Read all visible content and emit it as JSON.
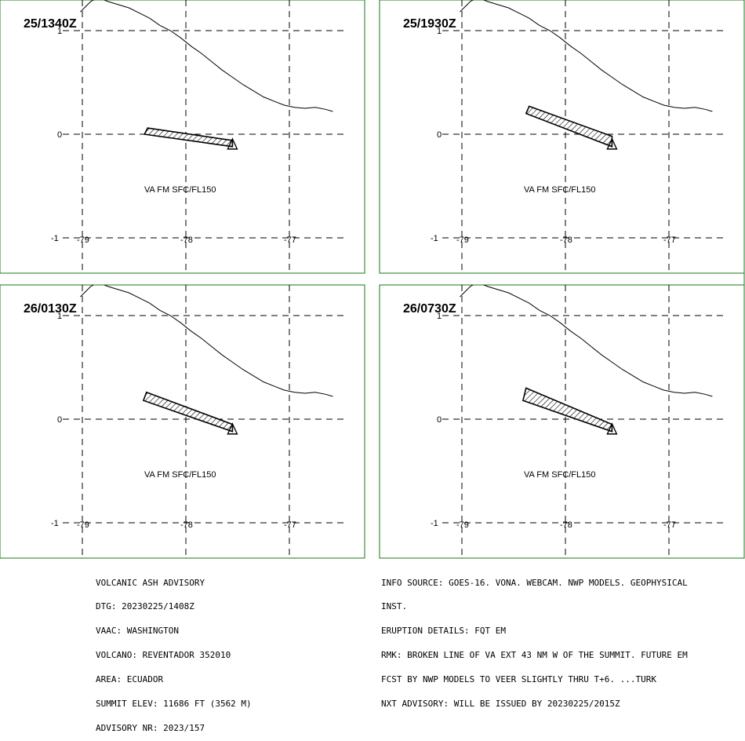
{
  "panels": [
    {
      "time_label": "25/1340Z",
      "level_label": "VA FM SFC/FL150",
      "plume_lonlat": [
        [
          -78.37,
          0.06
        ],
        [
          -77.55,
          -0.06
        ],
        [
          -77.55,
          -0.12
        ],
        [
          -78.4,
          0.0
        ]
      ],
      "vent_lonlat": [
        -77.55,
        -0.09
      ]
    },
    {
      "time_label": "25/1930Z",
      "level_label": "VA FM SFC/FL150",
      "plume_lonlat": [
        [
          -78.35,
          0.27
        ],
        [
          -77.55,
          -0.02
        ],
        [
          -77.55,
          -0.12
        ],
        [
          -78.38,
          0.2
        ]
      ],
      "vent_lonlat": [
        -77.55,
        -0.09
      ]
    },
    {
      "time_label": "26/0130Z",
      "level_label": "VA FM SFC/FL150",
      "plume_lonlat": [
        [
          -78.38,
          0.26
        ],
        [
          -77.55,
          -0.05
        ],
        [
          -77.55,
          -0.12
        ],
        [
          -78.41,
          0.18
        ]
      ],
      "vent_lonlat": [
        -77.55,
        -0.09
      ]
    },
    {
      "time_label": "26/0730Z",
      "level_label": "VA FM SFC/FL150",
      "plume_lonlat": [
        [
          -78.38,
          0.3
        ],
        [
          -77.55,
          -0.05
        ],
        [
          -77.55,
          -0.12
        ],
        [
          -78.41,
          0.18
        ]
      ],
      "vent_lonlat": [
        -77.55,
        -0.09
      ]
    }
  ],
  "axes": {
    "lon_ticks": [
      -79,
      -78,
      -77
    ],
    "lon_tick_labels": [
      "-79",
      "-78",
      "-77"
    ],
    "lat_ticks": [
      1,
      0,
      -1
    ],
    "lat_tick_labels": [
      "1",
      "0",
      "-1"
    ]
  },
  "coastline_lonlat": [
    [
      -79.02,
      1.18
    ],
    [
      -78.98,
      1.22
    ],
    [
      -78.92,
      1.28
    ],
    [
      -78.85,
      1.32
    ],
    [
      -78.75,
      1.28
    ],
    [
      -78.65,
      1.25
    ],
    [
      -78.55,
      1.22
    ],
    [
      -78.45,
      1.17
    ],
    [
      -78.35,
      1.12
    ],
    [
      -78.25,
      1.05
    ],
    [
      -78.15,
      1.0
    ],
    [
      -78.05,
      0.93
    ],
    [
      -77.95,
      0.85
    ],
    [
      -77.85,
      0.78
    ],
    [
      -77.75,
      0.7
    ],
    [
      -77.65,
      0.62
    ],
    [
      -77.55,
      0.55
    ],
    [
      -77.45,
      0.48
    ],
    [
      -77.35,
      0.42
    ],
    [
      -77.25,
      0.36
    ],
    [
      -77.15,
      0.32
    ],
    [
      -77.05,
      0.28
    ],
    [
      -76.95,
      0.26
    ],
    [
      -76.85,
      0.25
    ],
    [
      -76.75,
      0.26
    ],
    [
      -76.65,
      0.24
    ],
    [
      -76.58,
      0.22
    ]
  ],
  "advisory_left": [
    "VOLCANIC ASH ADVISORY",
    "DTG: 20230225/1408Z",
    "VAAC: WASHINGTON",
    "VOLCANO: REVENTADOR 352010",
    "AREA: ECUADOR",
    "SUMMIT ELEV: 11686 FT (3562 M)",
    "ADVISORY NR: 2023/157"
  ],
  "advisory_right": [
    "INFO SOURCE: GOES-16. VONA. WEBCAM. NWP MODELS. GEOPHYSICAL",
    "INST.",
    "ERUPTION DETAILS: FQT EM",
    "RMK: BROKEN LINE OF VA EXT 43 NM W OF THE SUMMIT. FUTURE EM",
    "FCST BY NWP MODELS TO VEER SLIGHTLY THRU T+6. ...TURK",
    "NXT ADVISORY: WILL BE ISSUED BY 20230225/2015Z"
  ]
}
